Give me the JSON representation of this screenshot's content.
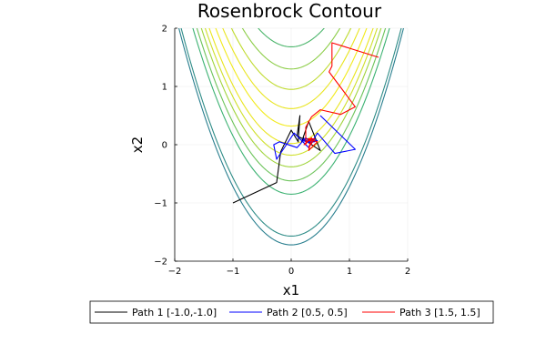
{
  "chart_data": {
    "type": "line",
    "title": "Rosenbrock Contour",
    "xlabel": "x1",
    "ylabel": "x2",
    "xlim": [
      -2,
      2
    ],
    "ylim": [
      -2,
      2
    ],
    "xticks": [
      -2,
      -1,
      0,
      1,
      2
    ],
    "yticks": [
      -2,
      -1,
      0,
      1,
      2
    ],
    "x_tick_labels": [
      "−2",
      "−1",
      "0",
      "1",
      "2"
    ],
    "y_tick_labels": [
      "−2",
      "−1",
      "0",
      "1",
      "2"
    ],
    "grid": true,
    "legend_position": "bottom",
    "contours": {
      "function": "Rosenbrock",
      "levels": [
        {
          "offset": -1.72,
          "color": "#287e8e"
        },
        {
          "offset": -1.57,
          "color": "#2e8c87"
        },
        {
          "offset": -0.85,
          "color": "#3cb272"
        },
        {
          "offset": -0.62,
          "color": "#6cc35a"
        },
        {
          "offset": -0.38,
          "color": "#a0d43c"
        },
        {
          "offset": -0.18,
          "color": "#cfe02a"
        },
        {
          "offset": 0.02,
          "color": "#e9e51e"
        },
        {
          "offset": 0.32,
          "color": "#f2ea1b"
        },
        {
          "offset": 0.62,
          "color": "#e9e51e"
        },
        {
          "offset": 0.95,
          "color": "#bfdb2e"
        },
        {
          "offset": 1.3,
          "color": "#8ccd47"
        },
        {
          "offset": 1.68,
          "color": "#4bb56b"
        },
        {
          "offset": 2.05,
          "color": "#2f9a80"
        }
      ]
    },
    "series": [
      {
        "name": "Path 1 [-1.0,-1.0]",
        "color": "#000000",
        "points": [
          [
            -1.0,
            -1.0
          ],
          [
            -0.25,
            -0.65
          ],
          [
            -0.18,
            -0.12
          ],
          [
            0.0,
            0.25
          ],
          [
            0.12,
            0.05
          ],
          [
            0.15,
            0.5
          ],
          [
            0.1,
            0.15
          ],
          [
            0.3,
            0.05
          ],
          [
            0.2,
            0.1
          ],
          [
            0.5,
            -0.1
          ],
          [
            0.3,
            0.4
          ],
          [
            0.18,
            0.05
          ],
          [
            0.22,
            0.12
          ]
        ]
      },
      {
        "name": "Path 2 [0.5, 0.5]",
        "color": "#0000ff",
        "points": [
          [
            0.5,
            0.5
          ],
          [
            1.1,
            -0.08
          ],
          [
            0.75,
            -0.15
          ],
          [
            0.45,
            0.2
          ],
          [
            0.3,
            -0.05
          ],
          [
            0.05,
            0.2
          ],
          [
            -0.25,
            -0.25
          ],
          [
            -0.3,
            0.0
          ],
          [
            -0.2,
            0.05
          ],
          [
            0.1,
            -0.05
          ],
          [
            0.25,
            0.12
          ],
          [
            0.35,
            0.02
          ],
          [
            0.2,
            0.1
          ],
          [
            0.28,
            0.05
          ],
          [
            0.4,
            0.05
          ],
          [
            0.3,
            0.1
          ],
          [
            0.45,
            0.07
          ],
          [
            0.32,
            0.03
          ],
          [
            0.2,
            0.07
          ]
        ]
      },
      {
        "name": "Path 3 [1.5, 1.5]",
        "color": "#ff0000",
        "points": [
          [
            1.5,
            1.5
          ],
          [
            0.7,
            1.75
          ],
          [
            0.7,
            1.35
          ],
          [
            0.65,
            1.25
          ],
          [
            1.1,
            0.65
          ],
          [
            0.85,
            0.52
          ],
          [
            0.5,
            0.6
          ],
          [
            0.35,
            0.48
          ],
          [
            0.25,
            0.3
          ],
          [
            0.25,
            0.05
          ],
          [
            0.35,
            0.08
          ],
          [
            0.3,
            -0.05
          ],
          [
            0.4,
            0.1
          ],
          [
            0.28,
            0.1
          ],
          [
            0.45,
            0.05
          ],
          [
            0.3,
            -0.1
          ],
          [
            0.35,
            0.12
          ],
          [
            0.22,
            0.0
          ],
          [
            0.3,
            0.08
          ],
          [
            0.24,
            0.0
          ],
          [
            0.28,
            0.05
          ]
        ]
      }
    ]
  }
}
